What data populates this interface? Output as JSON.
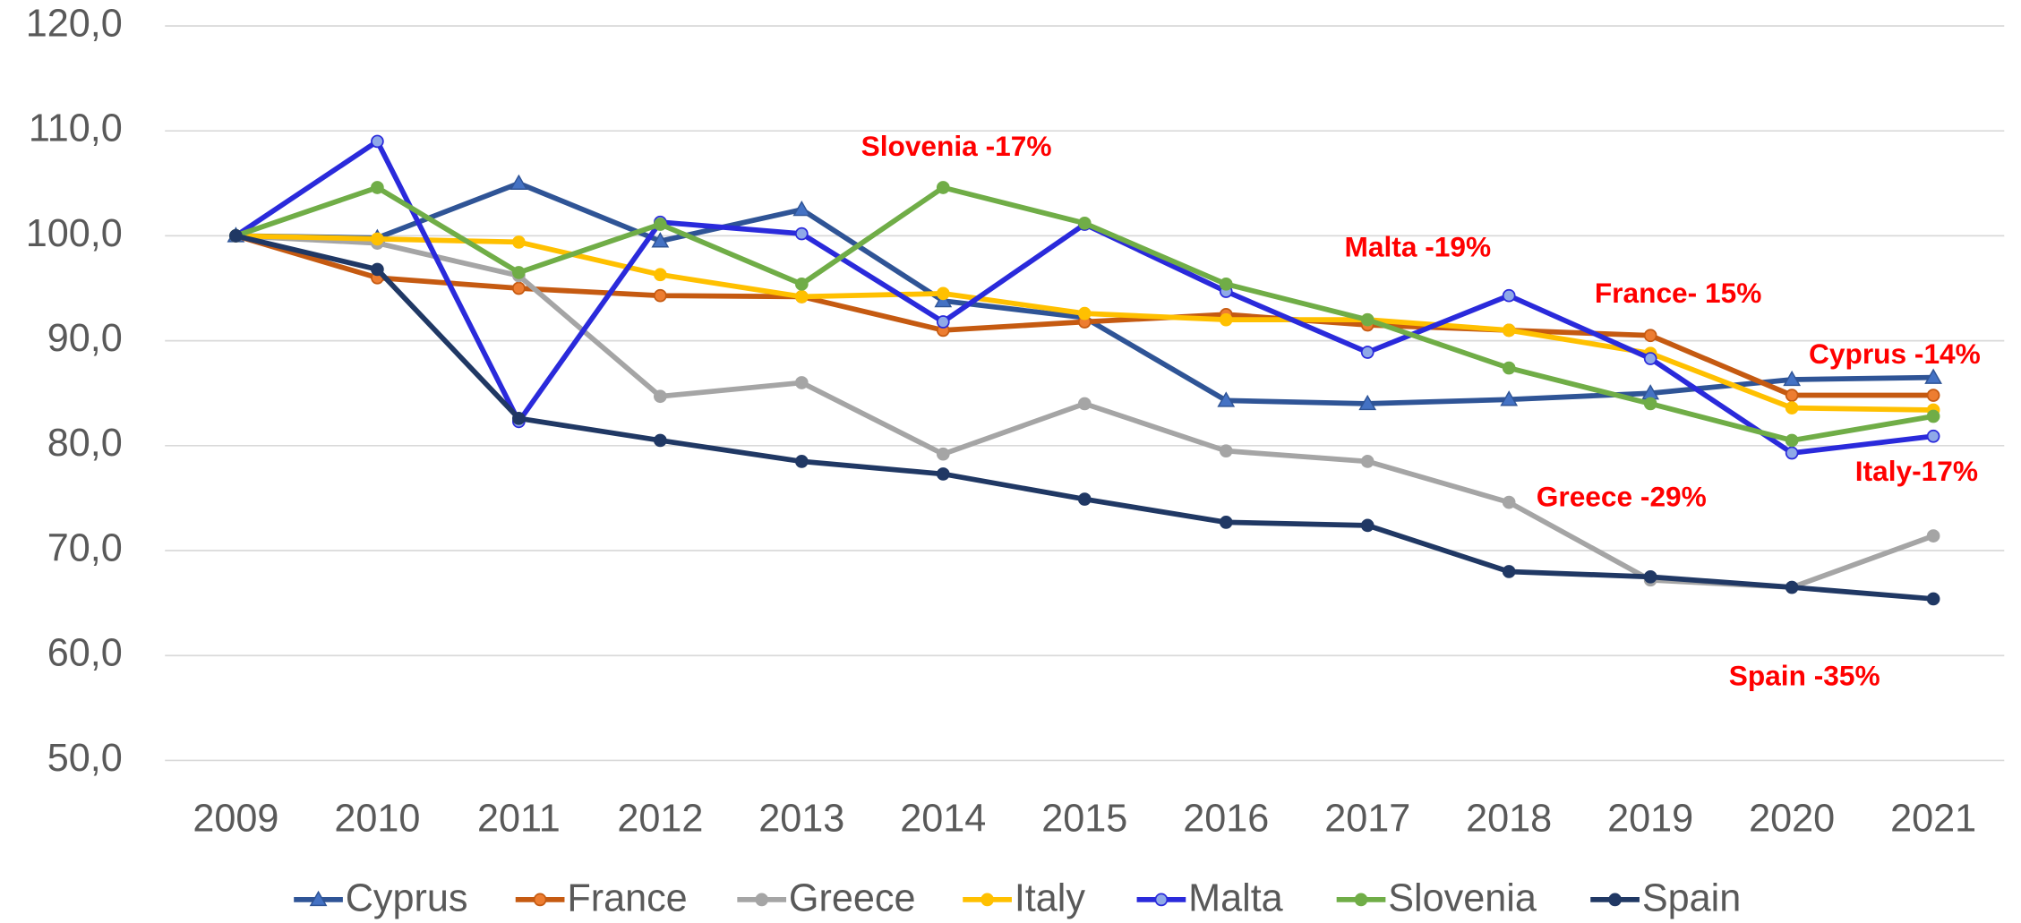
{
  "chart_data": {
    "type": "line",
    "categories": [
      "2009",
      "2010",
      "2011",
      "2012",
      "2013",
      "2014",
      "2015",
      "2016",
      "2017",
      "2018",
      "2019",
      "2020",
      "2021"
    ],
    "series": [
      {
        "name": "Cyprus",
        "color": "#2f5496",
        "marker_color": "#4472c4",
        "marker": "triangle",
        "values": [
          100,
          99.8,
          105,
          99.5,
          102.5,
          93.8,
          92.2,
          84.3,
          84,
          84.4,
          85,
          86.3,
          86.5
        ]
      },
      {
        "name": "France",
        "color": "#c55a11",
        "marker_color": "#ed7d31",
        "marker": "circle",
        "values": [
          100,
          96,
          95,
          94.3,
          94.2,
          91,
          91.8,
          92.5,
          91.5,
          91,
          90.5,
          84.8,
          84.8
        ]
      },
      {
        "name": "Greece",
        "color": "#a5a5a5",
        "marker_color": "#a5a5a5",
        "marker": "circle",
        "values": [
          100,
          99.3,
          96.2,
          84.7,
          86,
          79.2,
          84,
          79.5,
          78.5,
          74.6,
          67.2,
          66.5,
          71.4
        ]
      },
      {
        "name": "Italy",
        "color": "#ffc000",
        "marker_color": "#ffc000",
        "marker": "circle",
        "values": [
          100,
          99.7,
          99.4,
          96.3,
          94.2,
          94.5,
          92.6,
          92,
          92,
          91,
          88.8,
          83.6,
          83.4
        ]
      },
      {
        "name": "Malta",
        "color": "#2a2adb",
        "marker_color": "#8fa9e8",
        "marker": "circle",
        "values": [
          100,
          109,
          82.3,
          101.3,
          100.2,
          91.8,
          101.1,
          94.7,
          88.9,
          94.3,
          88.3,
          79.3,
          80.9
        ]
      },
      {
        "name": "Slovenia",
        "color": "#70ad47",
        "marker_color": "#70ad47",
        "marker": "circle",
        "values": [
          100,
          104.6,
          96.5,
          101.1,
          95.4,
          104.6,
          101.2,
          95.4,
          92,
          87.4,
          84,
          80.5,
          82.8
        ]
      },
      {
        "name": "Spain",
        "color": "#203864",
        "marker_color": "#203864",
        "marker": "circle",
        "values": [
          100,
          96.8,
          82.6,
          80.5,
          78.5,
          77.3,
          74.9,
          72.7,
          72.4,
          68,
          67.5,
          66.5,
          65.4
        ]
      }
    ],
    "ylim": [
      50,
      120
    ],
    "yticks": [
      {
        "value": 50,
        "label": "50,0"
      },
      {
        "value": 60,
        "label": "60,0"
      },
      {
        "value": 70,
        "label": "70,0"
      },
      {
        "value": 80,
        "label": "80,0"
      },
      {
        "value": 90,
        "label": "90,0"
      },
      {
        "value": 100,
        "label": "100,0"
      },
      {
        "value": 110,
        "label": "110,0"
      },
      {
        "value": 120,
        "label": "120,0"
      }
    ],
    "grid": true,
    "legend": "bottom",
    "annotations": [
      "Slovenia -17%",
      "Malta -19%",
      "France- 15%",
      "Cyprus -14%",
      "Italy-17%",
      "Greece -29%",
      "Spain -35%"
    ]
  }
}
